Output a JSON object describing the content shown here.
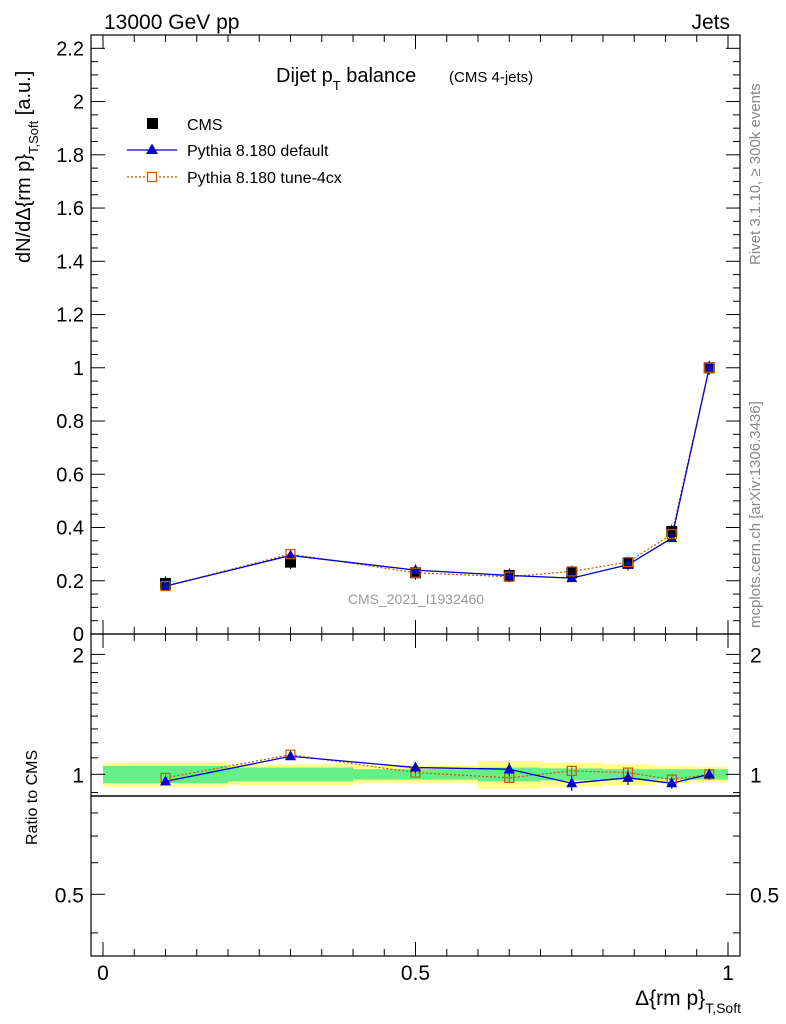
{
  "header": {
    "left": "13000 GeV pp",
    "right": "Jets"
  },
  "side_text": {
    "rivet": "Rivet 3.1.10, ≥ 300k events",
    "mcplots": "mcplots.cern.ch [arXiv:1306.3436]"
  },
  "colors": {
    "cms": "#000000",
    "default": "#0000cc",
    "tune": "#cc5500",
    "band_inner": "#66ee88",
    "band_outer": "#ffff88"
  },
  "chart_data": [
    {
      "type": "scatter",
      "panel": "main",
      "title_main": "Dijet p",
      "title_sub": "T",
      "title_tail": " balance",
      "title_small": "(CMS 4-jets)",
      "watermark": "CMS_2021_I1932460",
      "ylabel_main": "dN/dΔ{rm p}",
      "ylabel_sub": "T,Soft",
      "ylabel_unit": " [a.u.]",
      "xlim": [
        0,
        1
      ],
      "ylim": [
        0,
        2.25
      ],
      "yticks": [
        "0",
        "0.2",
        "0.4",
        "0.6",
        "0.8",
        "1",
        "1.2",
        "1.4",
        "1.6",
        "1.8",
        "2",
        "2.2"
      ],
      "ytick_values": [
        0,
        0.2,
        0.4,
        0.6,
        0.8,
        1,
        1.2,
        1.4,
        1.6,
        1.8,
        2,
        2.2
      ],
      "legend_position": "top-left",
      "legend": [
        "CMS",
        "Pythia 8.180 default",
        "Pythia 8.180 tune-4cx"
      ],
      "x": [
        0.1,
        0.3,
        0.5,
        0.65,
        0.75,
        0.84,
        0.91,
        0.97
      ],
      "series": [
        {
          "name": "CMS",
          "marker": "filled-square",
          "values": [
            0.19,
            0.27,
            0.23,
            0.22,
            0.23,
            0.265,
            0.385,
            1.0
          ]
        },
        {
          "name": "Pythia 8.180 default",
          "marker": "filled-triangle",
          "line": "solid",
          "values": [
            0.18,
            0.295,
            0.24,
            0.22,
            0.21,
            0.26,
            0.36,
            1.0
          ]
        },
        {
          "name": "Pythia 8.180 tune-4cx",
          "marker": "open-square",
          "line": "dotted",
          "values": [
            0.18,
            0.3,
            0.23,
            0.215,
            0.235,
            0.27,
            0.375,
            1.0
          ]
        }
      ]
    },
    {
      "type": "scatter",
      "panel": "ratio",
      "ylabel": "Ratio to CMS",
      "xlabel_main": "Δ{rm p}",
      "xlabel_sub": "T,Soft",
      "xlim": [
        0,
        1
      ],
      "ylim": [
        0.35,
        2.25
      ],
      "yticks": [
        "0.5",
        "1",
        "2"
      ],
      "ytick_values": [
        0.5,
        1,
        2
      ],
      "xticks": [
        "0",
        "0.5",
        "1"
      ],
      "xtick_values": [
        0,
        0.5,
        1
      ],
      "bin_edges": [
        0.0,
        0.2,
        0.4,
        0.6,
        0.7,
        0.8,
        0.88,
        0.94,
        1.0
      ],
      "band_inner_halfwidth": [
        0.05,
        0.04,
        0.03,
        0.04,
        0.035,
        0.03,
        0.03,
        0.03
      ],
      "band_outer_halfwidth": [
        0.07,
        0.06,
        0.05,
        0.08,
        0.07,
        0.06,
        0.05,
        0.045
      ],
      "x": [
        0.1,
        0.3,
        0.5,
        0.65,
        0.75,
        0.84,
        0.91,
        0.97
      ],
      "series": [
        {
          "name": "Pythia 8.180 default",
          "values": [
            0.96,
            1.11,
            1.04,
            1.03,
            0.95,
            0.98,
            0.95,
            1.0
          ],
          "errors": [
            0.02,
            0.02,
            0.03,
            0.04,
            0.04,
            0.04,
            0.03,
            0.03
          ]
        },
        {
          "name": "Pythia 8.180 tune-4cx",
          "values": [
            0.98,
            1.12,
            1.01,
            0.98,
            1.02,
            1.01,
            0.97,
            1.0
          ],
          "errors": [
            0.02,
            0.02,
            0.02,
            0.03,
            0.03,
            0.03,
            0.02,
            0.02
          ]
        }
      ]
    }
  ]
}
